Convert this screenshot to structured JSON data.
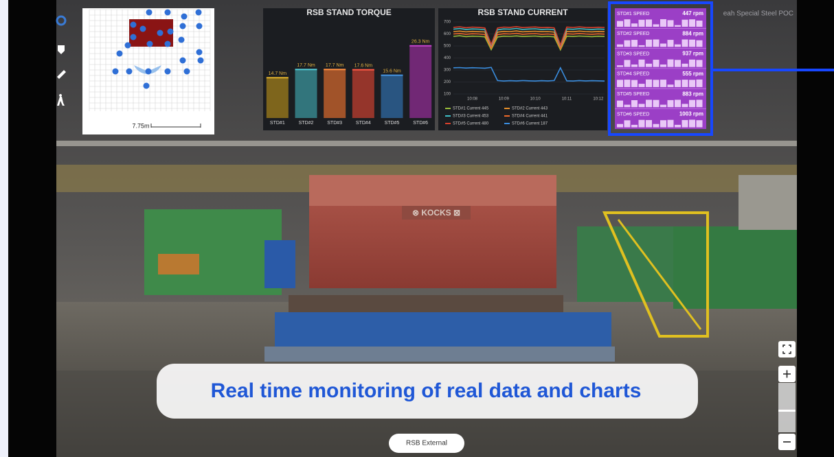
{
  "watermark": "eah Special Steel POC",
  "minimap": {
    "scale_label": "7.75m"
  },
  "chart_data": [
    {
      "type": "bar",
      "title": "RSB STAND TORQUE",
      "categories": [
        "STD#1",
        "STD#2",
        "STD#3",
        "STD#4",
        "STD#5",
        "STD#6"
      ],
      "values": [
        14.7,
        17.7,
        17.7,
        17.6,
        15.6,
        26.3
      ],
      "value_labels": [
        "14.7 Nm",
        "17.7 Nm",
        "17.7 Nm",
        "17.6 Nm",
        "15.6 Nm",
        "26.3 Nm"
      ],
      "colors": [
        "#8a6e1c",
        "#357f86",
        "#b05a2a",
        "#a3382c",
        "#2b5c8c",
        "#7b2a7e"
      ]
    },
    {
      "type": "line",
      "title": "RSB STAND CURRENT",
      "categories": [
        null,
        null,
        null,
        "10:08",
        null,
        null,
        null,
        null,
        "10:09",
        null,
        null,
        null,
        null,
        "10:10",
        null,
        null,
        null,
        null,
        "10:11",
        null,
        null,
        null,
        null,
        "10:12",
        null
      ],
      "ylim": [
        100,
        700
      ],
      "yticks": [
        100,
        200,
        300,
        400,
        500,
        600,
        700
      ],
      "grid": true,
      "series": [
        {
          "name": "STD#1 Current 445",
          "color": "#9bbf3a",
          "values": [
            580,
            585,
            578,
            582,
            580,
            576,
            470,
            575,
            582,
            580,
            584,
            579,
            581,
            583,
            578,
            580,
            576,
            468,
            582,
            579,
            583,
            580,
            578,
            581,
            579
          ]
        },
        {
          "name": "STD#2 Current 443",
          "color": "#e8902a",
          "values": [
            620,
            624,
            618,
            622,
            619,
            617,
            492,
            615,
            622,
            620,
            625,
            618,
            621,
            623,
            619,
            620,
            616,
            488,
            622,
            619,
            624,
            620,
            618,
            621,
            619
          ]
        },
        {
          "name": "STD#3 Current 453",
          "color": "#3fc0c8",
          "values": [
            640,
            645,
            638,
            642,
            640,
            636,
            502,
            635,
            642,
            640,
            646,
            638,
            641,
            643,
            638,
            640,
            636,
            498,
            642,
            639,
            644,
            640,
            638,
            641,
            639
          ]
        },
        {
          "name": "STD#4 Current 441",
          "color": "#f06a2a",
          "values": [
            600,
            604,
            598,
            602,
            600,
            596,
            482,
            595,
            602,
            600,
            605,
            598,
            601,
            603,
            598,
            600,
            596,
            478,
            602,
            599,
            604,
            600,
            598,
            601,
            599
          ]
        },
        {
          "name": "STD#5 Current 480",
          "color": "#d8402c",
          "values": [
            655,
            660,
            652,
            657,
            655,
            650,
            512,
            650,
            657,
            655,
            661,
            653,
            656,
            658,
            653,
            655,
            651,
            508,
            657,
            654,
            659,
            655,
            653,
            656,
            654
          ]
        },
        {
          "name": "STD#6 Current 187",
          "color": "#3a8ee0",
          "values": [
            318,
            320,
            316,
            319,
            317,
            315,
            322,
            212,
            208,
            211,
            209,
            212,
            210,
            208,
            211,
            209,
            212,
            318,
            210,
            208,
            212,
            209,
            211,
            210,
            208
          ]
        }
      ]
    }
  ],
  "speed_panel": {
    "rows": [
      {
        "label": "STD#1 SPEED",
        "value": "447 rpm",
        "spark": [
          70,
          90,
          40,
          85,
          88,
          30,
          92,
          80,
          20,
          86,
          90,
          75
        ]
      },
      {
        "label": "STD#2 SPEED",
        "value": "884 rpm",
        "spark": [
          30,
          80,
          85,
          20,
          88,
          90,
          40,
          85,
          30,
          90,
          88,
          80
        ]
      },
      {
        "label": "STD#3 SPEED",
        "value": "937 rpm",
        "spark": [
          20,
          85,
          30,
          90,
          40,
          88,
          30,
          92,
          86,
          40,
          90,
          85
        ]
      },
      {
        "label": "STD#4 SPEED",
        "value": "555 rpm",
        "spark": [
          88,
          90,
          86,
          40,
          92,
          88,
          90,
          30,
          86,
          90,
          88,
          92
        ]
      },
      {
        "label": "STD#5 SPEED",
        "value": "883 rpm",
        "spark": [
          80,
          30,
          85,
          40,
          90,
          88,
          30,
          86,
          90,
          40,
          88,
          90
        ]
      },
      {
        "label": "STD#6 SPEED",
        "value": "1003 rpm",
        "spark": [
          40,
          85,
          30,
          90,
          88,
          40,
          86,
          90,
          30,
          88,
          92,
          86
        ]
      }
    ]
  },
  "caption": "Real time monitoring of real data and charts",
  "button": "RSB External"
}
